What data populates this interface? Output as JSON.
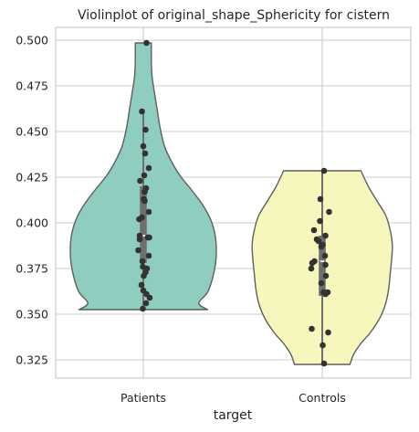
{
  "chart_data": {
    "type": "violin",
    "title": "Violinplot of original_shape_Sphericity for cistern",
    "xlabel": "target",
    "ylabel": "",
    "ylim": [
      0.315,
      0.507
    ],
    "yticks": [
      0.325,
      0.35,
      0.375,
      0.4,
      0.425,
      0.45,
      0.475,
      0.5
    ],
    "ytick_labels": [
      "0.325",
      "0.350",
      "0.375",
      "0.400",
      "0.425",
      "0.450",
      "0.475",
      "0.500"
    ],
    "categories": [
      "Patients",
      "Controls"
    ],
    "grid": true,
    "colors": {
      "Patients": "#8ecdc0",
      "Controls": "#f7f6bc",
      "outline": "#5f5f5f",
      "box": "#6f6f6f",
      "points": "#333333",
      "grid": "#cccccc",
      "frame": "#cccccc"
    },
    "series": [
      {
        "name": "Patients",
        "min": 0.3525,
        "max": 0.4985,
        "q1": 0.378,
        "median": 0.393,
        "q3": 0.42,
        "whisker_low": 0.3525,
        "whisker_high": 0.4615,
        "density": [
          {
            "y": 0.3525,
            "w": 0.88
          },
          {
            "y": 0.356,
            "w": 0.76
          },
          {
            "y": 0.362,
            "w": 0.88
          },
          {
            "y": 0.37,
            "w": 0.95
          },
          {
            "y": 0.378,
            "w": 0.99
          },
          {
            "y": 0.386,
            "w": 1.0
          },
          {
            "y": 0.394,
            "w": 0.98
          },
          {
            "y": 0.402,
            "w": 0.92
          },
          {
            "y": 0.41,
            "w": 0.81
          },
          {
            "y": 0.418,
            "w": 0.66
          },
          {
            "y": 0.426,
            "w": 0.5
          },
          {
            "y": 0.434,
            "w": 0.38
          },
          {
            "y": 0.442,
            "w": 0.29
          },
          {
            "y": 0.452,
            "w": 0.23
          },
          {
            "y": 0.462,
            "w": 0.19
          },
          {
            "y": 0.472,
            "w": 0.15
          },
          {
            "y": 0.48,
            "w": 0.12
          },
          {
            "y": 0.488,
            "w": 0.11
          },
          {
            "y": 0.4985,
            "w": 0.11
          }
        ],
        "points": [
          {
            "v": 0.4985,
            "j": 0.07
          },
          {
            "v": 0.461,
            "j": -0.03
          },
          {
            "v": 0.451,
            "j": 0.05
          },
          {
            "v": 0.442,
            "j": 0.0
          },
          {
            "v": 0.438,
            "j": 0.04
          },
          {
            "v": 0.43,
            "j": 0.12
          },
          {
            "v": 0.426,
            "j": 0.02
          },
          {
            "v": 0.423,
            "j": -0.07
          },
          {
            "v": 0.419,
            "j": 0.06
          },
          {
            "v": 0.417,
            "j": 0.03
          },
          {
            "v": 0.413,
            "j": 0.01
          },
          {
            "v": 0.412,
            "j": 0.03
          },
          {
            "v": 0.406,
            "j": 0.12
          },
          {
            "v": 0.403,
            "j": -0.03
          },
          {
            "v": 0.402,
            "j": -0.09
          },
          {
            "v": 0.393,
            "j": -0.08
          },
          {
            "v": 0.392,
            "j": 0.1
          },
          {
            "v": 0.392,
            "j": 0.13
          },
          {
            "v": 0.391,
            "j": -0.08
          },
          {
            "v": 0.385,
            "j": -0.11
          },
          {
            "v": 0.382,
            "j": 0.12
          },
          {
            "v": 0.379,
            "j": -0.02
          },
          {
            "v": 0.376,
            "j": -0.01
          },
          {
            "v": 0.375,
            "j": 0.08
          },
          {
            "v": 0.373,
            "j": 0.05
          },
          {
            "v": 0.371,
            "j": 0.01
          },
          {
            "v": 0.366,
            "j": -0.04
          },
          {
            "v": 0.363,
            "j": 0.0
          },
          {
            "v": 0.361,
            "j": 0.07
          },
          {
            "v": 0.359,
            "j": 0.14
          },
          {
            "v": 0.356,
            "j": 0.06
          },
          {
            "v": 0.353,
            "j": -0.01
          }
        ]
      },
      {
        "name": "Controls",
        "min": 0.3225,
        "max": 0.4285,
        "q1": 0.36,
        "median": 0.379,
        "q3": 0.393,
        "whisker_low": 0.3225,
        "whisker_high": 0.4285,
        "density": [
          {
            "y": 0.3225,
            "w": 0.38
          },
          {
            "y": 0.328,
            "w": 0.43
          },
          {
            "y": 0.334,
            "w": 0.53
          },
          {
            "y": 0.34,
            "w": 0.66
          },
          {
            "y": 0.348,
            "w": 0.79
          },
          {
            "y": 0.356,
            "w": 0.87
          },
          {
            "y": 0.364,
            "w": 0.91
          },
          {
            "y": 0.372,
            "w": 0.93
          },
          {
            "y": 0.38,
            "w": 0.95
          },
          {
            "y": 0.388,
            "w": 0.96
          },
          {
            "y": 0.396,
            "w": 0.93
          },
          {
            "y": 0.404,
            "w": 0.87
          },
          {
            "y": 0.412,
            "w": 0.75
          },
          {
            "y": 0.42,
            "w": 0.63
          },
          {
            "y": 0.4285,
            "w": 0.53
          }
        ],
        "points": [
          {
            "v": 0.4285,
            "j": 0.04
          },
          {
            "v": 0.413,
            "j": -0.04
          },
          {
            "v": 0.406,
            "j": 0.15
          },
          {
            "v": 0.401,
            "j": -0.05
          },
          {
            "v": 0.396,
            "j": -0.18
          },
          {
            "v": 0.393,
            "j": 0.07
          },
          {
            "v": 0.391,
            "j": -0.12
          },
          {
            "v": 0.39,
            "j": -0.08
          },
          {
            "v": 0.388,
            "j": 0.01
          },
          {
            "v": 0.387,
            "j": -0.02
          },
          {
            "v": 0.382,
            "j": 0.06
          },
          {
            "v": 0.379,
            "j": -0.17
          },
          {
            "v": 0.378,
            "j": -0.22
          },
          {
            "v": 0.377,
            "j": 0.07
          },
          {
            "v": 0.375,
            "j": -0.24
          },
          {
            "v": 0.371,
            "j": 0.08
          },
          {
            "v": 0.367,
            "j": -0.02
          },
          {
            "v": 0.362,
            "j": 0.03
          },
          {
            "v": 0.362,
            "j": 0.12
          },
          {
            "v": 0.361,
            "j": 0.07
          },
          {
            "v": 0.342,
            "j": -0.23
          },
          {
            "v": 0.34,
            "j": 0.13
          },
          {
            "v": 0.333,
            "j": 0.01
          },
          {
            "v": 0.323,
            "j": 0.04
          }
        ]
      }
    ]
  }
}
